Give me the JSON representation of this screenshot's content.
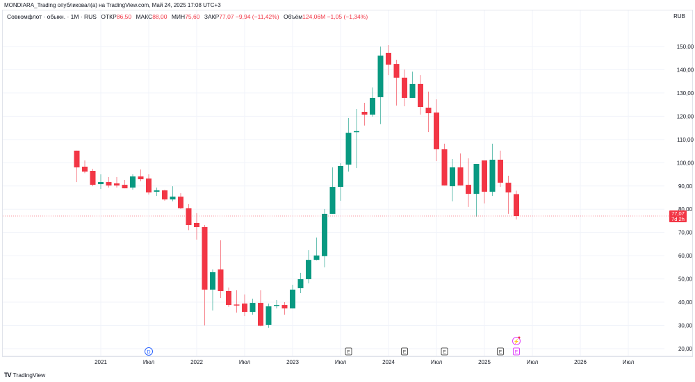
{
  "header": {
    "published": "MONDIARA_Trading опубликовал(а) на TradingView.com, Май 24, 2025 17:08 UTC+3"
  },
  "legend": {
    "symbol": "Совкомфлот · обыкн. · 1M · RUS",
    "open_label": "ОТКР",
    "open": "86,50",
    "high_label": "МАКС",
    "high": "88,00",
    "low_label": "МИН",
    "low": "75,60",
    "close_label": "ЗАКР",
    "close": "77,07",
    "change": "−9,94 (−11,42%)",
    "volume_label": "Объём",
    "volume": "124,06M",
    "volume_change": "−1,05 (−1,34%)"
  },
  "currency": "RUB",
  "last_price": {
    "value": "77,07",
    "countdown": "7d 2h"
  },
  "footer": {
    "brand": "TradingView"
  },
  "colors": {
    "up": "#089981",
    "down": "#f23645",
    "dividend": "#2962ff",
    "earnings": "#555555",
    "upcoming": "#e040fb"
  },
  "events": [
    {
      "type": "dividend",
      "label": "D",
      "month": "2021-07"
    },
    {
      "type": "earnings",
      "label": "E",
      "month": "2023-08"
    },
    {
      "type": "earnings",
      "label": "E",
      "month": "2024-03"
    },
    {
      "type": "earnings",
      "label": "E",
      "month": "2024-08"
    },
    {
      "type": "earnings",
      "label": "E",
      "month": "2025-03"
    },
    {
      "type": "earnings-upcoming",
      "label": "E",
      "month": "2025-05"
    },
    {
      "type": "flash",
      "label": "⚡",
      "month": "2025-05"
    }
  ],
  "chart_data": {
    "type": "candlestick",
    "title": "Совкомфлот · обыкн. · 1M",
    "ylim": [
      18,
      156
    ],
    "yticks": [
      [
        "150,00",
        150
      ],
      [
        "140,00",
        140
      ],
      [
        "130,00",
        130
      ],
      [
        "120,00",
        120
      ],
      [
        "110,00",
        110
      ],
      [
        "100,00",
        100
      ],
      [
        "90,00",
        90
      ],
      [
        "80,00",
        80
      ],
      [
        "70,00",
        70
      ],
      [
        "60,00",
        60
      ],
      [
        "50,00",
        50
      ],
      [
        "40,00",
        40
      ],
      [
        "30,00",
        30
      ],
      [
        "20,00",
        20
      ]
    ],
    "xticks": [
      [
        "2021",
        3
      ],
      [
        "Июл",
        9
      ],
      [
        "2022",
        15
      ],
      [
        "Июл",
        21
      ],
      [
        "2023",
        27
      ],
      [
        "Июл",
        33
      ],
      [
        "2024",
        39
      ],
      [
        "Июл",
        45
      ],
      [
        "2025",
        51
      ],
      [
        "Июл",
        57
      ],
      [
        "2026",
        63
      ],
      [
        "Июл",
        69
      ]
    ],
    "first_month": "2020-10",
    "candles": [
      [
        105.2,
        105.2,
        91.7,
        98.0
      ],
      [
        98.3,
        101,
        95.5,
        96.2
      ],
      [
        96.5,
        97.4,
        89.9,
        90.5
      ],
      [
        90.8,
        95,
        88.7,
        91.7
      ],
      [
        91.7,
        93.8,
        89.3,
        90.2
      ],
      [
        91.1,
        93.8,
        89.3,
        90.2
      ],
      [
        90.5,
        92.6,
        89.0,
        89.0
      ],
      [
        89.3,
        95,
        88.4,
        94.1
      ],
      [
        94.1,
        97.1,
        92,
        92.9
      ],
      [
        93.2,
        95,
        86.3,
        87.2
      ],
      [
        87.5,
        89.3,
        85.7,
        88.1
      ],
      [
        88.1,
        88.4,
        83.6,
        84.2
      ],
      [
        84.2,
        89.9,
        83.4,
        85.4
      ],
      [
        85.4,
        86.9,
        80.1,
        80.4
      ],
      [
        80.4,
        82.2,
        71,
        73.2
      ],
      [
        74.1,
        78.3,
        66.9,
        72.3
      ],
      [
        72.3,
        73.2,
        30,
        45.4
      ],
      [
        45.4,
        54.1,
        36.4,
        52.9
      ],
      [
        54.1,
        66.6,
        41.8,
        44.8
      ],
      [
        44.8,
        46.3,
        38,
        38.8
      ],
      [
        39,
        45.1,
        35.5,
        38.7
      ],
      [
        39.4,
        43.3,
        34,
        35.8
      ],
      [
        35.8,
        41.5,
        34.6,
        39.7
      ],
      [
        39.7,
        45.1,
        29.6,
        29.9
      ],
      [
        30.2,
        39.4,
        29,
        38.2
      ],
      [
        38.5,
        40.9,
        37.3,
        38.8
      ],
      [
        38.8,
        40,
        34.6,
        37.3
      ],
      [
        37.3,
        47.5,
        37.3,
        45.4
      ],
      [
        46.0,
        52.6,
        43.9,
        49.9
      ],
      [
        49.9,
        62.4,
        48.1,
        58.2
      ],
      [
        58.2,
        67.8,
        58,
        60.1
      ],
      [
        59.8,
        80.1,
        55,
        78.0
      ],
      [
        78,
        98,
        78,
        89.6
      ],
      [
        89.6,
        99.8,
        83.6,
        98.6
      ],
      [
        99.2,
        119.2,
        96.2,
        112.9
      ],
      [
        113.3,
        123.1,
        97.7,
        113.6
      ],
      [
        121.9,
        125.8,
        116,
        120.7
      ],
      [
        120.7,
        132.4,
        119.8,
        127.9
      ],
      [
        128.2,
        150,
        116.6,
        146.1
      ],
      [
        147.3,
        150.6,
        137.7,
        142.2
      ],
      [
        142.5,
        144.3,
        124.6,
        136.6
      ],
      [
        136.6,
        140.1,
        124.3,
        127.9
      ],
      [
        127.9,
        139.2,
        127.9,
        133.9
      ],
      [
        133.9,
        137.7,
        120.7,
        124
      ],
      [
        123.7,
        130.6,
        113.2,
        121.3
      ],
      [
        121.6,
        127.3,
        100.7,
        105.8
      ],
      [
        105.8,
        108.2,
        90.2,
        90.2
      ],
      [
        89.9,
        101.6,
        83.4,
        98
      ],
      [
        98,
        104,
        90.2,
        90.2
      ],
      [
        90.5,
        101.9,
        81,
        86.6
      ],
      [
        86.6,
        99.5,
        76.8,
        99.5
      ],
      [
        101,
        101,
        82.5,
        87.5
      ],
      [
        87.5,
        108.2,
        85.7,
        101.3
      ],
      [
        101.3,
        105.2,
        89.6,
        91.4
      ],
      [
        91.4,
        94.4,
        78,
        87.2
      ],
      [
        86.5,
        88.0,
        75.6,
        77.07
      ]
    ],
    "last_close": 77.07
  }
}
